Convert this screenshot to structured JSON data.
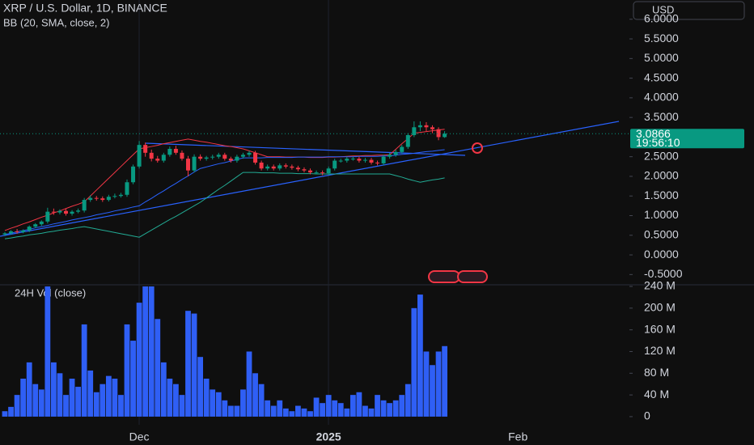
{
  "header": {
    "symbol": "XRP / U.S. Dollar, 1D, BINANCE",
    "indicator": "BB (20, SMA, close, 2)",
    "currency": "USD",
    "countdown": "19:56:10"
  },
  "chart_data": [
    {
      "type": "candlestick",
      "last_price": 3.0866,
      "up_color": "#089981",
      "down_color": "#f23645",
      "last_color": "#089981",
      "ylim": [
        -0.72,
        6.49
      ],
      "yticks": [
        {
          "value": 6,
          "label": "6.0000"
        },
        {
          "value": 5.5,
          "label": "5.5000"
        },
        {
          "value": 5,
          "label": "5.0000"
        },
        {
          "value": 4.5,
          "label": "4.5000"
        },
        {
          "value": 4,
          "label": "4.0000"
        },
        {
          "value": 3.5,
          "label": "3.5000"
        },
        {
          "value": 2.5,
          "label": "2.5000"
        },
        {
          "value": 2,
          "label": "2.0000"
        },
        {
          "value": 1.5,
          "label": "1.5000"
        },
        {
          "value": 1,
          "label": "1.0000"
        },
        {
          "value": 0.5,
          "label": "0.5000"
        },
        {
          "value": 0,
          "label": "0.0000"
        },
        {
          "value": -0.5,
          "label": "-0.5000"
        }
      ],
      "open": [
        0.52,
        0.55,
        0.6,
        0.58,
        0.62,
        0.72,
        0.78,
        0.85,
        1.1,
        1.08,
        1.12,
        1.05,
        1.1,
        1.13,
        1.4,
        1.45,
        1.44,
        1.4,
        1.48,
        1.5,
        1.53,
        1.85,
        2.25,
        2.8,
        2.6,
        2.45,
        2.4,
        2.55,
        2.7,
        2.6,
        2.45,
        2.15,
        2.5,
        2.45,
        2.48,
        2.5,
        2.55,
        2.45,
        2.4,
        2.5,
        2.55,
        2.6,
        2.35,
        2.2,
        2.25,
        2.2,
        2.28,
        2.25,
        2.22,
        2.18,
        2.15,
        2.1,
        2.1,
        2.08,
        2.2,
        2.4,
        2.4,
        2.45,
        2.45,
        2.4,
        2.42,
        2.35,
        2.33,
        2.5,
        2.55,
        2.62,
        2.75,
        3.05,
        3.25,
        3.3,
        3.25,
        3.2,
        3.0,
        null,
        null,
        null,
        null,
        null,
        null,
        null,
        null,
        null,
        null,
        null,
        null
      ],
      "high": [
        0.58,
        0.63,
        0.66,
        0.65,
        0.75,
        0.81,
        0.88,
        1.2,
        1.18,
        1.16,
        1.18,
        1.14,
        1.18,
        1.45,
        1.52,
        1.5,
        1.49,
        1.53,
        1.56,
        1.58,
        1.92,
        2.3,
        2.9,
        2.86,
        2.68,
        2.52,
        2.6,
        2.76,
        2.78,
        2.66,
        2.52,
        2.56,
        2.56,
        2.52,
        2.55,
        2.6,
        2.6,
        2.5,
        2.55,
        2.6,
        2.65,
        2.65,
        2.4,
        2.3,
        2.3,
        2.33,
        2.33,
        2.3,
        2.27,
        2.23,
        2.2,
        2.15,
        2.15,
        2.25,
        2.45,
        2.45,
        2.5,
        2.5,
        2.5,
        2.47,
        2.47,
        2.4,
        2.55,
        2.6,
        2.68,
        2.8,
        3.1,
        3.4,
        3.4,
        3.38,
        3.3,
        3.25,
        3.15,
        null,
        null,
        null,
        null,
        null,
        null,
        null,
        null,
        null,
        null,
        null,
        null
      ],
      "low": [
        0.48,
        0.52,
        0.54,
        0.55,
        0.58,
        0.68,
        0.74,
        0.8,
        1.02,
        1.03,
        1.0,
        1.0,
        1.06,
        1.08,
        1.35,
        1.38,
        1.35,
        1.36,
        1.44,
        1.46,
        1.48,
        1.8,
        2.2,
        2.5,
        2.38,
        2.35,
        2.35,
        2.5,
        2.55,
        2.4,
        2.0,
        2.1,
        2.4,
        2.4,
        2.43,
        2.45,
        2.4,
        2.35,
        2.35,
        2.45,
        2.5,
        2.3,
        2.15,
        2.15,
        2.15,
        2.15,
        2.2,
        2.17,
        2.13,
        2.1,
        2.05,
        2.05,
        2.03,
        2.03,
        2.15,
        2.35,
        2.35,
        2.4,
        2.35,
        2.35,
        2.3,
        2.28,
        2.28,
        2.45,
        2.5,
        2.58,
        2.7,
        3.0,
        3.15,
        3.15,
        3.1,
        2.92,
        2.98,
        null,
        null,
        null,
        null,
        null,
        null,
        null,
        null,
        null,
        null,
        null,
        null
      ],
      "close": [
        0.55,
        0.6,
        0.58,
        0.62,
        0.72,
        0.78,
        0.85,
        1.1,
        1.08,
        1.12,
        1.05,
        1.1,
        1.13,
        1.4,
        1.45,
        1.44,
        1.4,
        1.48,
        1.5,
        1.53,
        1.85,
        2.25,
        2.8,
        2.6,
        2.45,
        2.4,
        2.55,
        2.7,
        2.6,
        2.45,
        2.15,
        2.5,
        2.45,
        2.48,
        2.5,
        2.55,
        2.45,
        2.4,
        2.5,
        2.55,
        2.6,
        2.35,
        2.2,
        2.25,
        2.2,
        2.28,
        2.25,
        2.22,
        2.18,
        2.15,
        2.1,
        2.1,
        2.08,
        2.2,
        2.4,
        2.4,
        2.45,
        2.45,
        2.4,
        2.42,
        2.35,
        2.33,
        2.5,
        2.55,
        2.62,
        2.75,
        3.05,
        3.25,
        3.3,
        3.25,
        3.2,
        3.0,
        3.0866,
        null,
        null,
        null,
        null,
        null,
        null,
        null,
        null,
        null,
        null,
        null,
        null
      ],
      "overlays": [
        {
          "color": "#f23645",
          "values": [
            0.62,
            0.68,
            0.73,
            0.79,
            0.84,
            0.9,
            0.96,
            1.01,
            1.07,
            1.12,
            1.18,
            1.24,
            1.29,
            1.35,
            1.5,
            1.65,
            1.8,
            1.95,
            2.1,
            2.25,
            2.4,
            2.55,
            2.7,
            2.73,
            2.76,
            2.79,
            2.83,
            2.86,
            2.89,
            2.92,
            2.95,
            2.92,
            2.89,
            2.87,
            2.84,
            2.81,
            2.78,
            2.76,
            2.73,
            2.7,
            2.65,
            2.6,
            2.55,
            2.5,
            2.5,
            2.5,
            2.49,
            2.49,
            2.49,
            2.49,
            2.48,
            2.48,
            2.48,
            2.49,
            2.49,
            2.5,
            2.51,
            2.52,
            2.52,
            2.53,
            2.53,
            2.54,
            2.54,
            2.55,
            2.69,
            2.83,
            2.96,
            3.1,
            3.12,
            3.14,
            3.16,
            3.18,
            3.2,
            null,
            null,
            null,
            null,
            null,
            null,
            null,
            null,
            null,
            null,
            null,
            null
          ]
        },
        {
          "color": "#2962ff",
          "values": [
            0.52,
            0.55,
            0.59,
            0.62,
            0.65,
            0.69,
            0.72,
            0.75,
            0.79,
            0.82,
            0.85,
            0.89,
            0.92,
            0.95,
            0.98,
            1.02,
            1.05,
            1.08,
            1.12,
            1.15,
            1.18,
            1.22,
            1.25,
            1.35,
            1.44,
            1.54,
            1.63,
            1.73,
            1.82,
            1.92,
            2.01,
            2.11,
            2.2,
            2.24,
            2.28,
            2.32,
            2.35,
            2.39,
            2.43,
            2.47,
            2.47,
            2.47,
            2.47,
            2.48,
            2.48,
            2.48,
            2.48,
            2.48,
            2.49,
            2.49,
            2.49,
            2.49,
            2.49,
            2.5,
            2.5,
            2.5,
            2.5,
            2.5,
            2.51,
            2.51,
            2.51,
            2.51,
            2.52,
            2.52,
            2.54,
            2.56,
            2.57,
            2.59,
            2.61,
            2.63,
            2.64,
            2.66,
            2.68,
            null,
            null,
            null,
            null,
            null,
            null,
            null,
            null,
            null,
            null,
            null,
            null
          ]
        },
        {
          "color": "#22ab94",
          "values": [
            0.41,
            0.43,
            0.46,
            0.48,
            0.51,
            0.53,
            0.55,
            0.58,
            0.6,
            0.63,
            0.65,
            0.67,
            0.7,
            0.72,
            0.69,
            0.66,
            0.63,
            0.6,
            0.57,
            0.54,
            0.51,
            0.48,
            0.45,
            0.54,
            0.63,
            0.72,
            0.81,
            0.9,
            0.98,
            1.07,
            1.16,
            1.25,
            1.34,
            1.45,
            1.56,
            1.67,
            1.77,
            1.88,
            1.99,
            2.1,
            2.1,
            2.1,
            2.09,
            2.09,
            2.09,
            2.08,
            2.08,
            2.08,
            2.07,
            2.07,
            2.07,
            2.06,
            2.06,
            2.06,
            2.06,
            2.06,
            2.06,
            2.06,
            2.06,
            2.06,
            2.06,
            2.06,
            2.06,
            2.06,
            2.02,
            1.98,
            1.93,
            1.89,
            1.85,
            1.88,
            1.91,
            1.93,
            1.96,
            null,
            null,
            null,
            null,
            null,
            null,
            null,
            null,
            null,
            null,
            null,
            null
          ]
        }
      ]
    },
    {
      "type": "bar",
      "title": "24H Vol (close)",
      "color": "#2f5ff5",
      "ylim": [
        -15,
        243
      ],
      "yticks": [
        {
          "value": 240,
          "label": "240 M"
        },
        {
          "value": 200,
          "label": "200 M"
        },
        {
          "value": 160,
          "label": "160 M"
        },
        {
          "value": 120,
          "label": "120 M"
        },
        {
          "value": 80,
          "label": "80 M"
        },
        {
          "value": 40,
          "label": "40 M"
        },
        0
      ],
      "categories": [
        null,
        null,
        null,
        null,
        null,
        null,
        null,
        null,
        null,
        null,
        null,
        null,
        null,
        null,
        null,
        null,
        null,
        null,
        null,
        null,
        null,
        null,
        "Dec",
        null,
        null,
        null,
        null,
        null,
        null,
        null,
        null,
        null,
        null,
        null,
        null,
        null,
        null,
        null,
        null,
        null,
        null,
        null,
        null,
        null,
        null,
        null,
        null,
        null,
        null,
        null,
        null,
        null,
        null,
        "2025",
        null,
        null,
        null,
        null,
        null,
        null,
        null,
        null,
        null,
        null,
        null,
        null,
        null,
        null,
        null,
        null,
        null,
        null,
        null,
        null,
        null,
        null,
        null,
        null,
        null,
        null,
        null,
        null,
        null,
        null,
        "Feb"
      ],
      "values": [
        10,
        18,
        40,
        70,
        100,
        60,
        50,
        240,
        100,
        80,
        40,
        70,
        55,
        170,
        85,
        45,
        60,
        75,
        70,
        40,
        170,
        140,
        210,
        240,
        240,
        180,
        100,
        70,
        60,
        40,
        195,
        190,
        110,
        70,
        50,
        45,
        30,
        20,
        20,
        50,
        120,
        80,
        60,
        30,
        20,
        30,
        15,
        10,
        20,
        15,
        10,
        35,
        25,
        40,
        30,
        25,
        15,
        40,
        45,
        20,
        15,
        40,
        30,
        25,
        30,
        40,
        60,
        200,
        225,
        120,
        95,
        120,
        130,
        null,
        null,
        null,
        null,
        null,
        null,
        null,
        null,
        null,
        null,
        null,
        null
      ]
    }
  ]
}
